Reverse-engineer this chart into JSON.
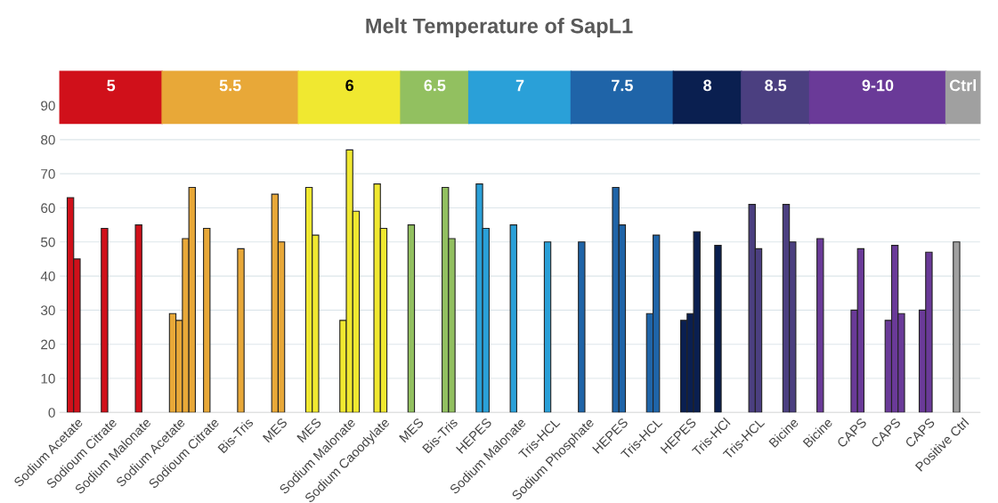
{
  "chart_data": {
    "type": "bar",
    "title": "Melt Temperature of SapL1",
    "categories": [
      "Sodium Acetate",
      "Sodioum Citrate",
      "Sodium Malonate",
      "Sodium Acetate",
      "Sodioum Citrate",
      "Bis-Tris",
      "MES",
      "MES",
      "Sodium Malonate",
      "Sodium Caoodylate",
      "MES",
      "Bis-Tris",
      "HEPES",
      "Sodium Malonate",
      "Tris-HCL",
      "Sodium Phosphate",
      "HEPES",
      "Tris-HCL",
      "HEPES",
      "Tris-HCl",
      "Tris-HCL",
      "Bicine",
      "Bicine",
      "CAPS",
      "CAPS",
      "CAPS",
      "Positive Ctrl"
    ],
    "series": [
      {
        "values": [
          63,
          54,
          55,
          29,
          54,
          48,
          64,
          66,
          27,
          67,
          55,
          66,
          67,
          55,
          50,
          50,
          66,
          29,
          27,
          49,
          61,
          61,
          51,
          30,
          27,
          30,
          50
        ],
        "colors": [
          "#d0101a",
          "#d0101a",
          "#d0101a",
          "#e8a838",
          "#e8a838",
          "#e8a838",
          "#e8a838",
          "#f0e830",
          "#f0e830",
          "#f0e830",
          "#92c060",
          "#92c060",
          "#2aa0d8",
          "#2aa0d8",
          "#2aa0d8",
          "#1f64a8",
          "#1f64a8",
          "#1f64a8",
          "#0a1f50",
          "#0a1f50",
          "#4b3f80",
          "#4b3f80",
          "#6a3a98",
          "#6a3a98",
          "#6a3a98",
          "#6a3a98",
          "#a0a0a0"
        ]
      },
      {
        "values": [
          45,
          null,
          null,
          27,
          null,
          null,
          50,
          52,
          77,
          54,
          null,
          51,
          54,
          null,
          null,
          null,
          55,
          52,
          29,
          null,
          48,
          50,
          null,
          48,
          49,
          47,
          null
        ],
        "colors": [
          "#d0101a",
          "#d0101a",
          "#d0101a",
          "#e8a838",
          "#e8a838",
          "#e8a838",
          "#e8a838",
          "#f0e830",
          "#f0e830",
          "#f0e830",
          "#92c060",
          "#92c060",
          "#2aa0d8",
          "#2aa0d8",
          "#2aa0d8",
          "#1f64a8",
          "#1f64a8",
          "#1f64a8",
          "#0a1f50",
          "#0a1f50",
          "#4b3f80",
          "#4b3f80",
          "#6a3a98",
          "#6a3a98",
          "#6a3a98",
          "#6a3a98",
          "#a0a0a0"
        ]
      },
      {
        "values": [
          null,
          null,
          null,
          51,
          null,
          null,
          null,
          null,
          59,
          null,
          null,
          null,
          null,
          null,
          null,
          null,
          null,
          null,
          53,
          null,
          null,
          null,
          null,
          null,
          29,
          null,
          null
        ],
        "colors": [
          "#d0101a",
          "#d0101a",
          "#d0101a",
          "#e8a838",
          "#e8a838",
          "#e8a838",
          "#e8a838",
          "#f0e830",
          "#f0e830",
          "#f0e830",
          "#92c060",
          "#92c060",
          "#2aa0d8",
          "#2aa0d8",
          "#2aa0d8",
          "#1f64a8",
          "#1f64a8",
          "#1f64a8",
          "#0a1f50",
          "#0a1f50",
          "#4b3f80",
          "#4b3f80",
          "#6a3a98",
          "#6a3a98",
          "#6a3a98",
          "#6a3a98",
          "#a0a0a0"
        ]
      },
      {
        "values": [
          null,
          null,
          null,
          66,
          null,
          null,
          null,
          null,
          null,
          null,
          null,
          null,
          null,
          null,
          null,
          null,
          null,
          null,
          null,
          null,
          null,
          null,
          null,
          null,
          null,
          null,
          null
        ],
        "colors": [
          "#d0101a",
          "#d0101a",
          "#d0101a",
          "#e8a838",
          "#e8a838",
          "#e8a838",
          "#e8a838",
          "#f0e830",
          "#f0e830",
          "#f0e830",
          "#92c060",
          "#92c060",
          "#2aa0d8",
          "#2aa0d8",
          "#2aa0d8",
          "#1f64a8",
          "#1f64a8",
          "#1f64a8",
          "#0a1f50",
          "#0a1f50",
          "#4b3f80",
          "#4b3f80",
          "#6a3a98",
          "#6a3a98",
          "#6a3a98",
          "#6a3a98",
          "#a0a0a0"
        ]
      }
    ],
    "ylim": [
      0,
      100
    ],
    "yticks": [
      0,
      10,
      20,
      30,
      40,
      50,
      60,
      70,
      80,
      90
    ],
    "grid": "y",
    "annotations": [
      "5",
      "5.5",
      "6",
      "6.5",
      "7",
      "7.5",
      "8",
      "8.5",
      "9-10",
      "Ctrl"
    ]
  }
}
